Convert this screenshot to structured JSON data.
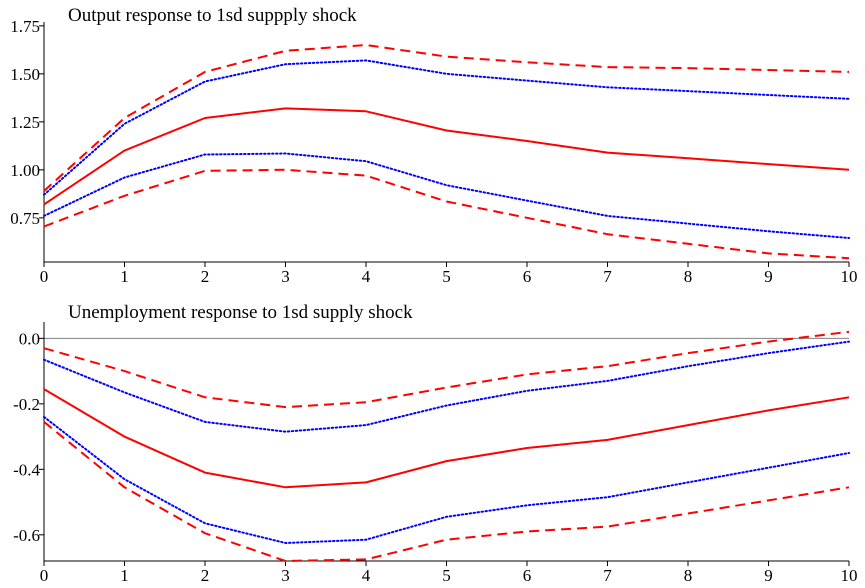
{
  "chart_data": [
    {
      "type": "line",
      "title": "Output response to 1sd suppply shock",
      "xlabel": "",
      "ylabel": "",
      "x": [
        0,
        1,
        2,
        3,
        4,
        5,
        6,
        7,
        8,
        9,
        10
      ],
      "xlim": [
        0,
        10
      ],
      "ylim": [
        0.52,
        1.77
      ],
      "xticks": [
        "0",
        "1",
        "2",
        "3",
        "4",
        "5",
        "6",
        "7",
        "8",
        "9",
        "10"
      ],
      "yticks": [
        {
          "value": 0.75,
          "label": "0.75"
        },
        {
          "value": 1.0,
          "label": "1.00"
        },
        {
          "value": 1.25,
          "label": "1.25"
        },
        {
          "value": 1.5,
          "label": "1.50"
        },
        {
          "value": 1.75,
          "label": "1.75"
        }
      ],
      "zero_line": false,
      "grid": false,
      "series": [
        {
          "style": "dashed",
          "color": "#ff0000",
          "values": [
            0.89,
            1.27,
            1.51,
            1.62,
            1.65,
            1.59,
            1.56,
            1.535,
            1.53,
            1.52,
            1.51
          ]
        },
        {
          "style": "dotted",
          "color": "#0000ff",
          "values": [
            0.87,
            1.24,
            1.46,
            1.55,
            1.57,
            1.5,
            1.465,
            1.43,
            1.41,
            1.39,
            1.37
          ]
        },
        {
          "style": "solid",
          "color": "#ff0000",
          "values": [
            0.82,
            1.1,
            1.27,
            1.32,
            1.305,
            1.205,
            1.15,
            1.09,
            1.06,
            1.03,
            1.0
          ]
        },
        {
          "style": "dotted",
          "color": "#0000ff",
          "values": [
            0.76,
            0.96,
            1.08,
            1.085,
            1.045,
            0.92,
            0.84,
            0.76,
            0.72,
            0.68,
            0.645
          ]
        },
        {
          "style": "dashed",
          "color": "#ff0000",
          "values": [
            0.705,
            0.865,
            0.995,
            1.0,
            0.97,
            0.835,
            0.75,
            0.665,
            0.615,
            0.565,
            0.54
          ]
        }
      ]
    },
    {
      "type": "line",
      "title": "Unemployment response to 1sd supply shock",
      "xlabel": "",
      "ylabel": "",
      "x": [
        0,
        1,
        2,
        3,
        4,
        5,
        6,
        7,
        8,
        9,
        10
      ],
      "xlim": [
        0,
        10
      ],
      "ylim": [
        -0.68,
        0.05
      ],
      "xticks": [
        "0",
        "1",
        "2",
        "3",
        "4",
        "5",
        "6",
        "7",
        "8",
        "9",
        "10"
      ],
      "yticks": [
        {
          "value": -0.6,
          "label": "-0.6"
        },
        {
          "value": -0.4,
          "label": "-0.4"
        },
        {
          "value": -0.2,
          "label": "-0.2"
        },
        {
          "value": 0.0,
          "label": "0.0"
        }
      ],
      "zero_line": true,
      "grid": false,
      "series": [
        {
          "style": "dashed",
          "color": "#ff0000",
          "values": [
            -0.03,
            -0.1,
            -0.18,
            -0.21,
            -0.195,
            -0.15,
            -0.11,
            -0.085,
            -0.045,
            -0.01,
            0.02
          ]
        },
        {
          "style": "dotted",
          "color": "#0000ff",
          "values": [
            -0.065,
            -0.165,
            -0.255,
            -0.285,
            -0.265,
            -0.205,
            -0.16,
            -0.13,
            -0.085,
            -0.045,
            -0.01
          ]
        },
        {
          "style": "solid",
          "color": "#ff0000",
          "values": [
            -0.155,
            -0.3,
            -0.41,
            -0.455,
            -0.44,
            -0.375,
            -0.335,
            -0.31,
            -0.265,
            -0.22,
            -0.18
          ]
        },
        {
          "style": "dotted",
          "color": "#0000ff",
          "values": [
            -0.24,
            -0.43,
            -0.565,
            -0.625,
            -0.615,
            -0.545,
            -0.51,
            -0.485,
            -0.44,
            -0.395,
            -0.35
          ]
        },
        {
          "style": "dashed",
          "color": "#ff0000",
          "values": [
            -0.255,
            -0.455,
            -0.595,
            -0.68,
            -0.675,
            -0.615,
            -0.59,
            -0.575,
            -0.535,
            -0.495,
            -0.455
          ]
        }
      ]
    }
  ]
}
